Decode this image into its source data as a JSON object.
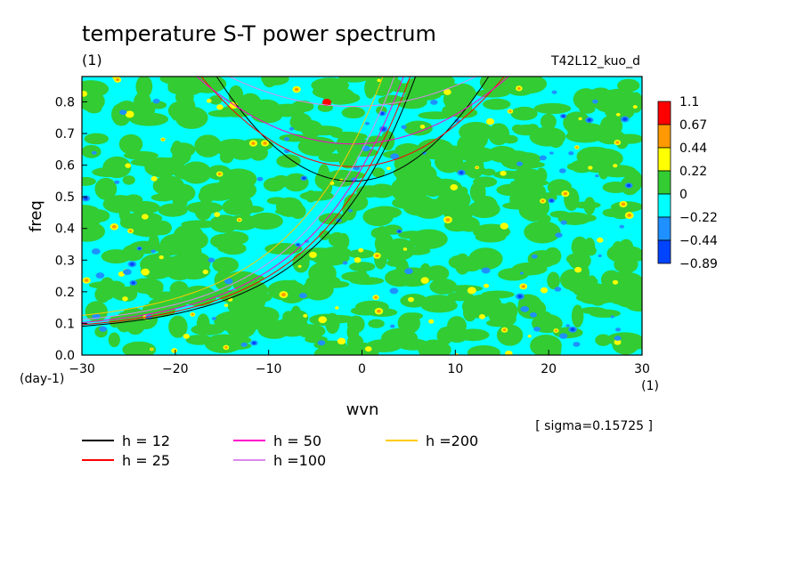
{
  "chart_data": {
    "type": "heatmap",
    "title": "temperature S-T power spectrum",
    "unit_label": "(1)",
    "run_label": "T42L12_kuo_d",
    "xlabel": "wvn",
    "ylabel": "freq",
    "x_unit": "(1)",
    "y_unit": "(day-1)",
    "xlim": [
      -30,
      30
    ],
    "ylim": [
      0,
      0.88
    ],
    "x_ticks": [
      -30,
      -20,
      -10,
      0,
      10,
      20,
      30
    ],
    "x_tick_labels": [
      "−30",
      "−20",
      "−10",
      "0",
      "10",
      "20",
      "30"
    ],
    "y_ticks": [
      0.0,
      0.1,
      0.2,
      0.3,
      0.4,
      0.5,
      0.6,
      0.7,
      0.8
    ],
    "y_tick_labels": [
      "0.0",
      "0.1",
      "0.2",
      "0.3",
      "0.4",
      "0.5",
      "0.6",
      "0.7",
      "0.8"
    ],
    "sigma_label": "[ sigma=0.15725 ]",
    "colorbar": {
      "labels": [
        "1.1",
        "0.67",
        "0.44",
        "0.22",
        "0",
        "−0.22",
        "−0.44",
        "−0.89"
      ],
      "levels": [
        1.1,
        0.67,
        0.44,
        0.22,
        0,
        -0.22,
        -0.44,
        -0.89
      ],
      "colors": [
        "#ff0000",
        "#ff9900",
        "#ffff00",
        "#33cc33",
        "#00ffff",
        "#1e90ff",
        "#0044ff"
      ]
    },
    "field": {
      "description_free": true,
      "background_value": 0.0,
      "dominant_colors": [
        "#00ffff",
        "#33cc33"
      ]
    },
    "dispersion_curves": [
      {
        "name": "h = 12",
        "h": 12,
        "color": "#000000"
      },
      {
        "name": "h = 25",
        "h": 25,
        "color": "#ff0000"
      },
      {
        "name": "h = 50",
        "h": 50,
        "color": "#ff00cc"
      },
      {
        "name": "h =100",
        "h": 100,
        "color": "#dd88ee"
      },
      {
        "name": "h =200",
        "h": 200,
        "color": "#ffcc00"
      }
    ]
  }
}
